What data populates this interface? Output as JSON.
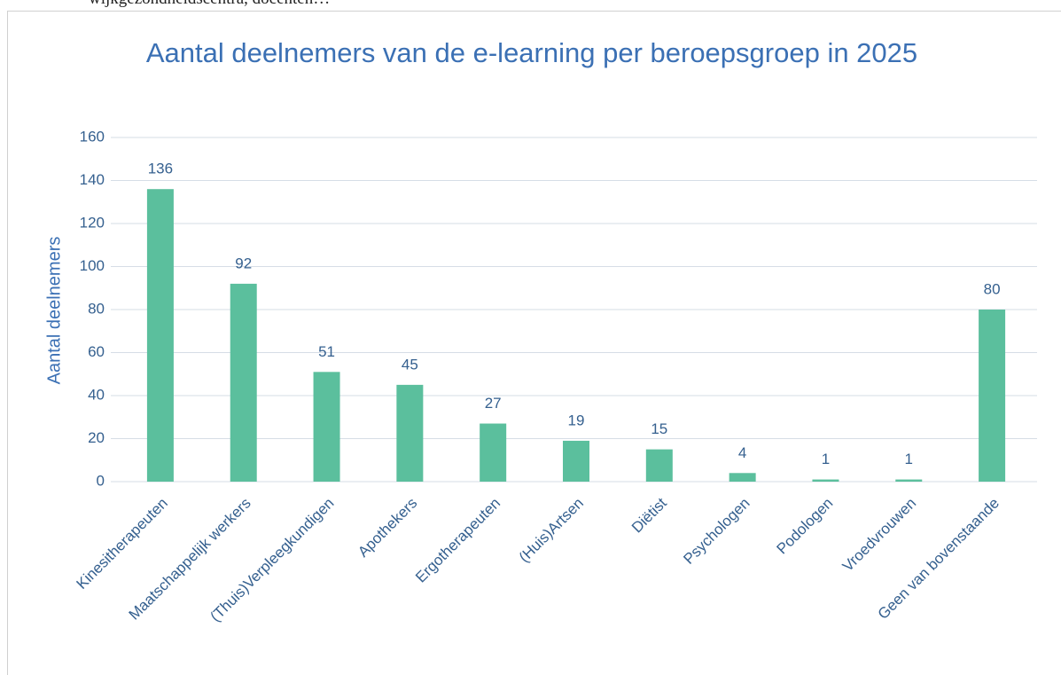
{
  "header_text": "wijkgezondheidscentra, docenten…",
  "chart_data": {
    "type": "bar",
    "title": "Aantal deelnemers van de e-learning per beroepsgroep in 2025",
    "y_label": "Aantal deelnemers",
    "categories": [
      "Kinesitherapeuten",
      "Maatschappelijk werkers",
      "(Thuis)Verpleegkundigen",
      "Apothekers",
      "Ergotherapeuten",
      "(Huis)Artsen",
      "Diëtist",
      "Psychologen",
      "Podologen",
      "Vroedvrouwen",
      "Geen van bovenstaande"
    ],
    "values": [
      136,
      92,
      51,
      45,
      27,
      19,
      15,
      4,
      1,
      1,
      80
    ],
    "color": "#5bbf9d",
    "ylim": [
      0,
      160
    ],
    "yticks": [
      0,
      20,
      40,
      60,
      80,
      100,
      120,
      140,
      160
    ],
    "grid": true
  }
}
